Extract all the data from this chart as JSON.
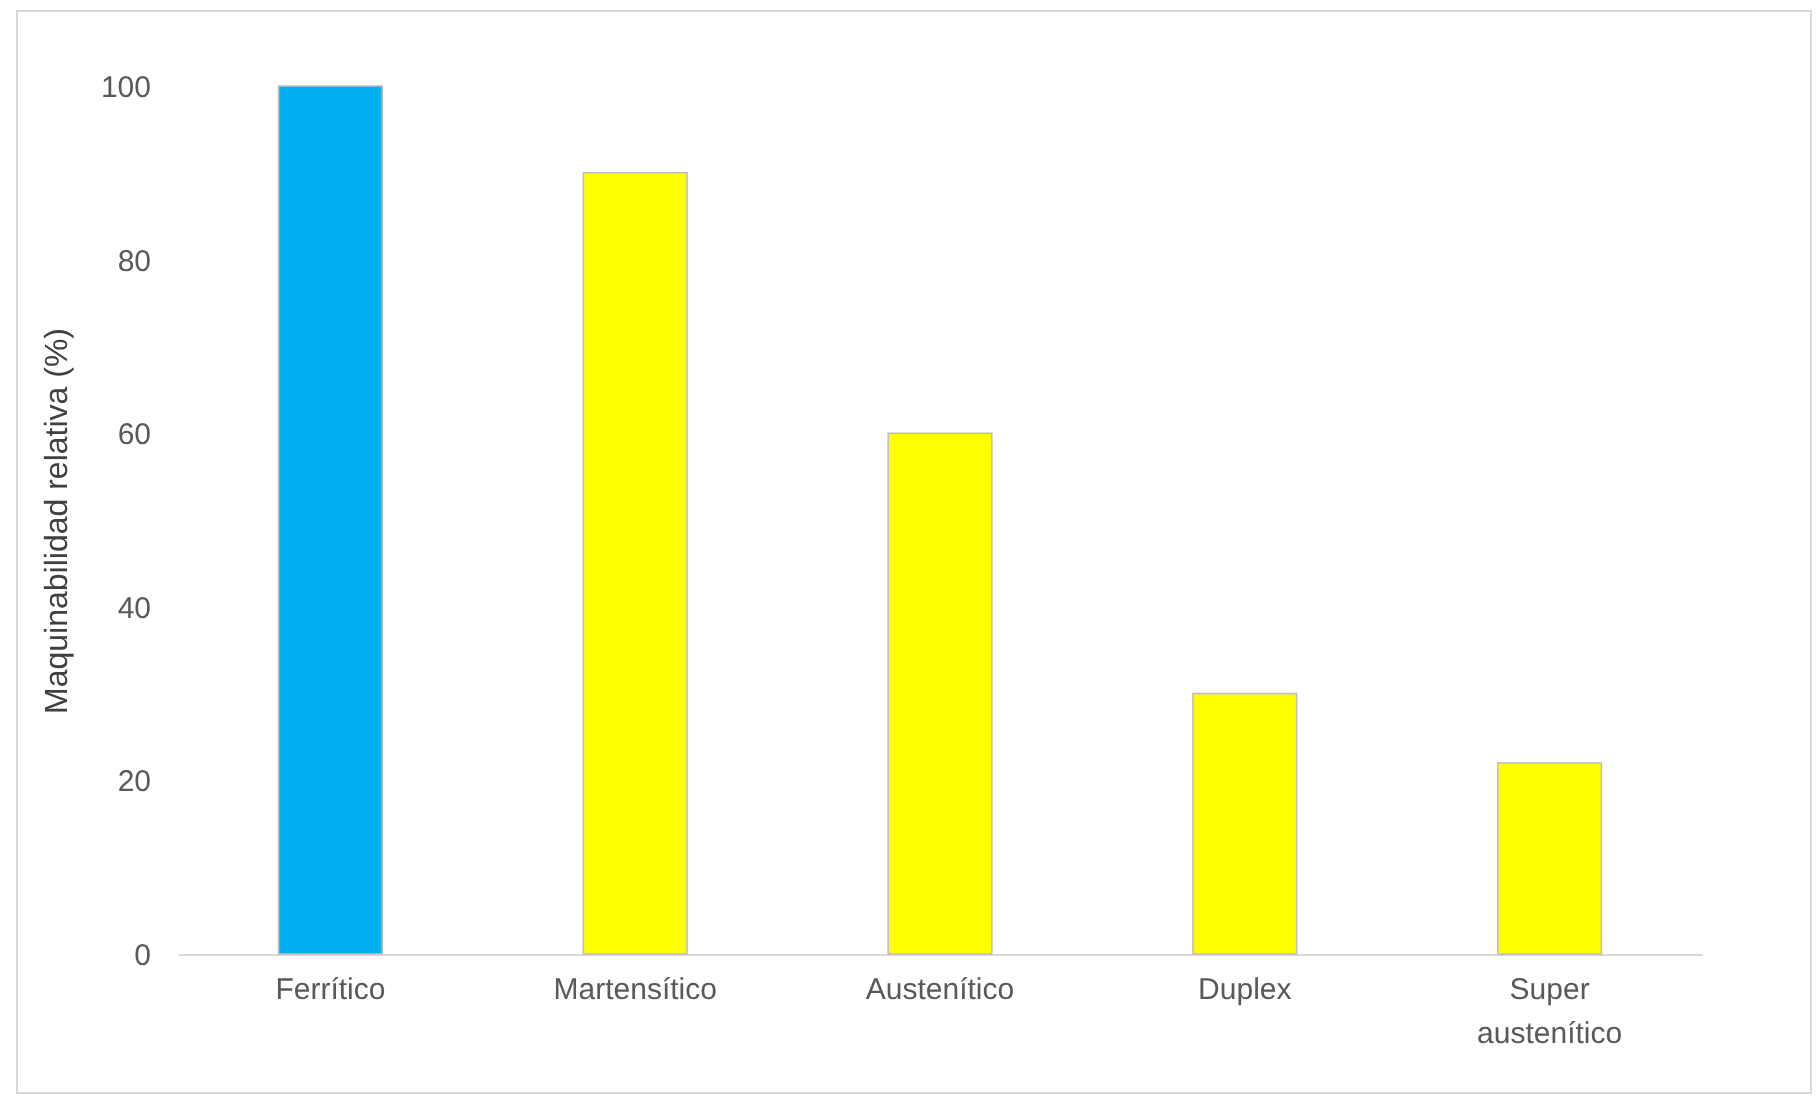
{
  "chart_data": {
    "type": "bar",
    "ylabel": "Maquinabilidad relativa (%)",
    "categories": [
      "Ferrítico",
      "Martensítico",
      "Austenítico",
      "Duplex",
      "Super austenítico"
    ],
    "values": [
      100,
      90,
      60,
      30,
      22
    ],
    "colors": [
      "#00b0f0",
      "#ffff00",
      "#ffff00",
      "#ffff00",
      "#ffff00"
    ],
    "ylim": [
      0,
      100
    ],
    "yticks": [
      0,
      20,
      40,
      60,
      80,
      100
    ]
  }
}
